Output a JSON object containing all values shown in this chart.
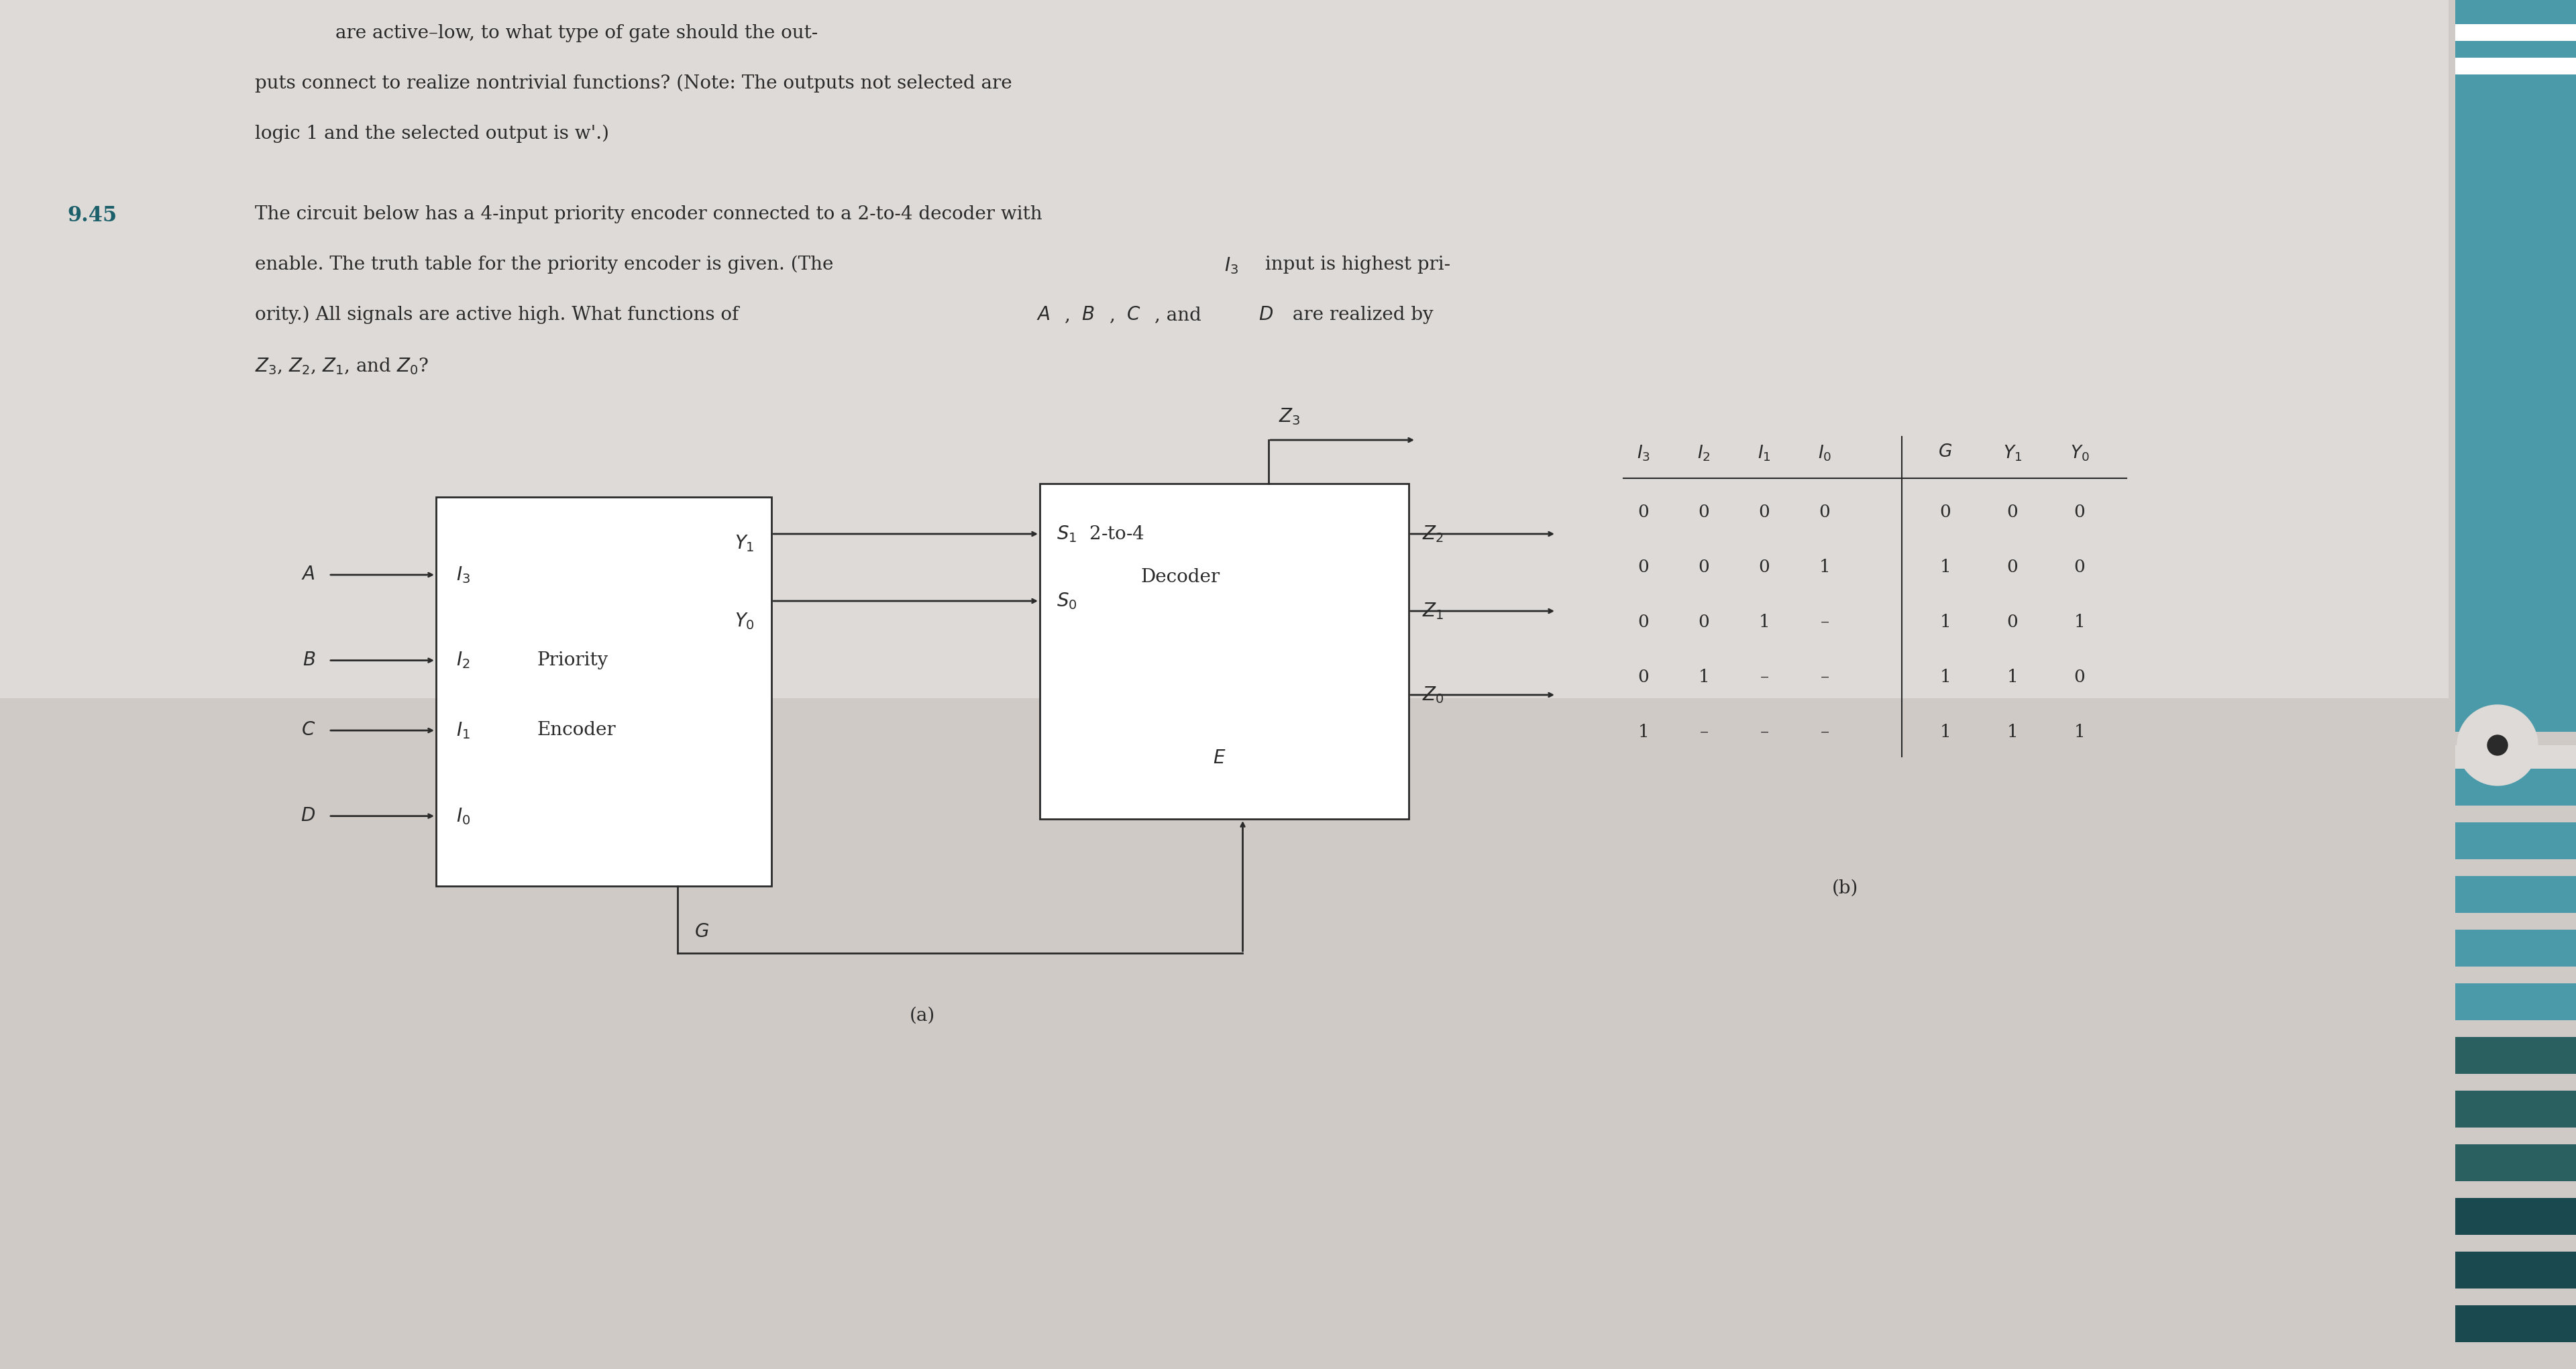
{
  "bg_color_top": "#d8d0cc",
  "bg_color": "#c8c0bc",
  "text_color": "#2a2a2a",
  "problem_num_color": "#1a5f6a",
  "fig_width": 38.4,
  "fig_height": 20.41,
  "teal_color": "#4a9aaa",
  "teal_dark": "#2a6a72",
  "header_partial": "are active–low, to what type of gate should the out-",
  "header_line1": "puts connect to realize nontrivial functions? (Note: The outputs not selected are",
  "header_line2": "logic 1 and the selected output is w'.)",
  "problem_number": "9.45",
  "prob_line1": "The circuit below has a 4-input priority encoder connected to a 2-to-4 decoder with",
  "prob_line2a": "enable. The truth table for the priority encoder is given. (The ",
  "prob_line2b": " input is highest pri-",
  "prob_line3a": "ority.) All signals are active high. What functions of ",
  "prob_line3b": ", and ",
  "prob_line3c": " are realized by",
  "prob_line4": ", and Z",
  "label_a": "(a)",
  "label_b": "(b)",
  "tt_rows": [
    [
      "0",
      "0",
      "0",
      "0",
      "0",
      "0",
      "0"
    ],
    [
      "0",
      "0",
      "0",
      "1",
      "1",
      "0",
      "0"
    ],
    [
      "0",
      "0",
      "1",
      "–",
      "1",
      "0",
      "1"
    ],
    [
      "0",
      "1",
      "–",
      "–",
      "1",
      "1",
      "0"
    ],
    [
      "1",
      "–",
      "–",
      "–",
      "1",
      "1",
      "1"
    ]
  ]
}
